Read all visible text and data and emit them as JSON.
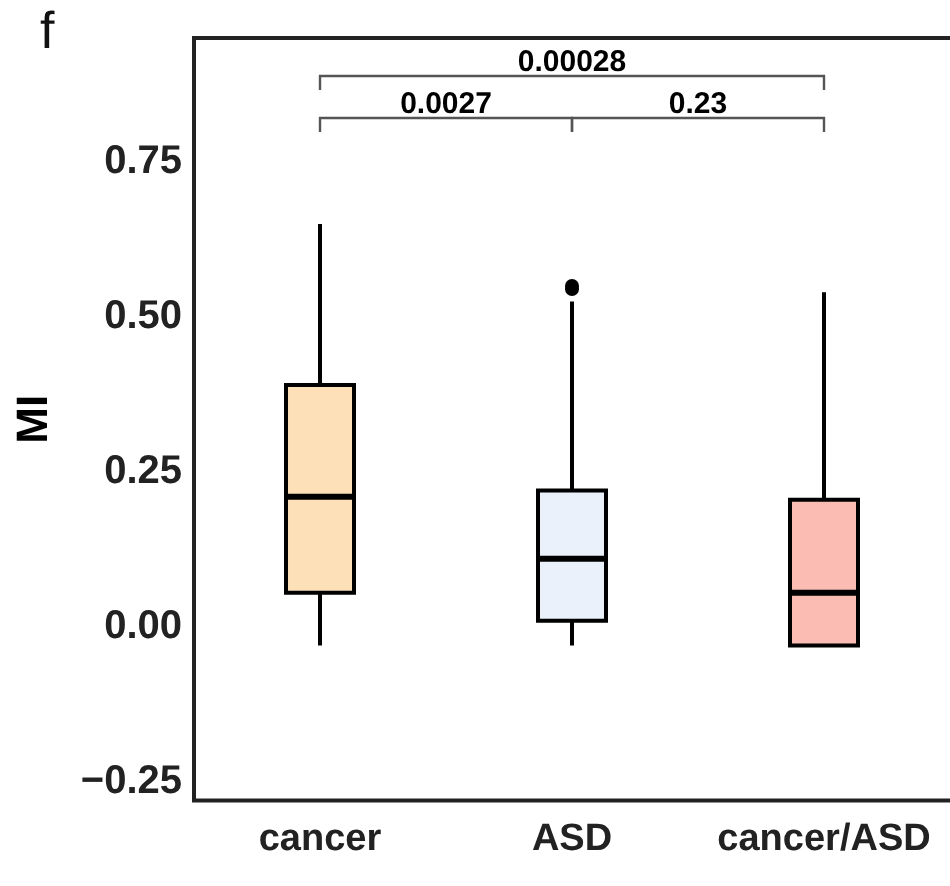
{
  "chart_data": {
    "type": "box",
    "title": "f",
    "ylabel": "MI",
    "categories": [
      "cancer",
      "ASD",
      "cancer/ASD"
    ],
    "colors": [
      "#fde0b8",
      "#eaf1fa",
      "#fbbcb4"
    ],
    "boxes": [
      {
        "low": -0.03,
        "q1": 0.055,
        "median": 0.21,
        "q3": 0.39,
        "high": 0.65
      },
      {
        "low": -0.03,
        "q1": 0.01,
        "median": 0.11,
        "q3": 0.22,
        "high": 0.525,
        "outliers": [
          0.545,
          0.55
        ]
      },
      {
        "low": -0.03,
        "q1": -0.03,
        "median": 0.055,
        "q3": 0.205,
        "high": 0.54
      }
    ],
    "ylim": [
      -0.28,
      0.95
    ],
    "yticks": [
      {
        "value": -0.25,
        "label": "−0.25"
      },
      {
        "value": 0,
        "label": "0.00"
      },
      0.25,
      {
        "value": 0.5,
        "label": "0.50"
      },
      0.75
    ],
    "grid": false,
    "legend": false,
    "annotations": [
      "0.0027",
      "0.23",
      "0.00028"
    ]
  }
}
